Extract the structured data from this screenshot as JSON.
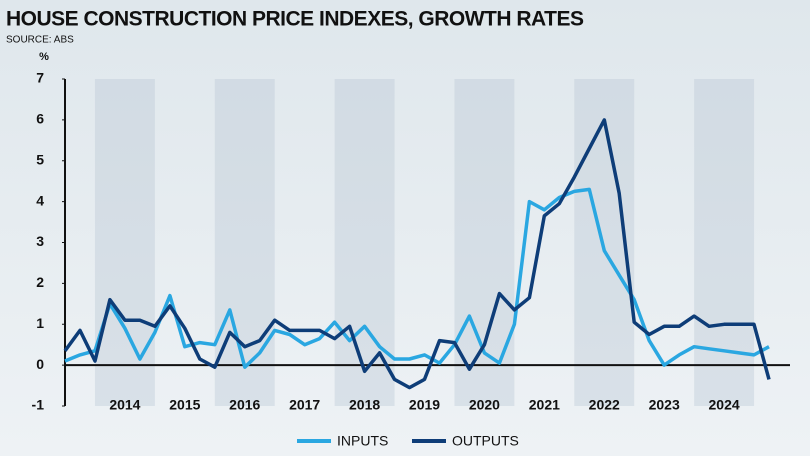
{
  "chart_data": {
    "type": "line",
    "title": "HOUSE CONSTRUCTION PRICE INDEXES, GROWTH RATES",
    "subtitle": "SOURCE: ABS",
    "y_label": "%",
    "x": [
      2013.5,
      2013.75,
      2014,
      2014.25,
      2014.5,
      2014.75,
      2015,
      2015.25,
      2015.5,
      2015.75,
      2016,
      2016.25,
      2016.5,
      2016.75,
      2017,
      2017.25,
      2017.5,
      2017.75,
      2018,
      2018.25,
      2018.5,
      2018.75,
      2019,
      2019.25,
      2019.5,
      2019.75,
      2020,
      2020.25,
      2020.5,
      2020.75,
      2021,
      2021.25,
      2021.5,
      2021.75,
      2022,
      2022.25,
      2022.5,
      2022.75,
      2023,
      2023.25,
      2023.5,
      2023.75,
      2024,
      2024.25,
      2024.5,
      2024.75,
      2025,
      2025.25
    ],
    "series": [
      {
        "name": "INPUTS",
        "color": "#2aa7e1",
        "values": [
          0.1,
          0.25,
          0.35,
          1.5,
          0.9,
          0.15,
          0.8,
          1.7,
          0.45,
          0.55,
          0.5,
          1.35,
          -0.05,
          0.3,
          0.85,
          0.75,
          0.5,
          0.65,
          1.05,
          0.6,
          0.95,
          0.45,
          0.15,
          0.15,
          0.25,
          0.05,
          0.5,
          1.2,
          0.3,
          0.05,
          1.0,
          4.0,
          3.8,
          4.1,
          4.25,
          4.3,
          2.8,
          2.2,
          1.6,
          0.6,
          0.0,
          0.25,
          0.45,
          0.4,
          0.35,
          0.3,
          0.25,
          0.45
        ]
      },
      {
        "name": "OUTPUTS",
        "color": "#0e3d78",
        "values": [
          0.35,
          0.85,
          0.1,
          1.6,
          1.1,
          1.1,
          0.95,
          1.45,
          0.9,
          0.15,
          -0.05,
          0.8,
          0.45,
          0.6,
          1.1,
          0.85,
          0.85,
          0.85,
          0.65,
          0.95,
          -0.15,
          0.3,
          -0.35,
          -0.55,
          -0.35,
          0.6,
          0.55,
          -0.1,
          0.5,
          1.75,
          1.35,
          1.65,
          3.65,
          3.95,
          4.6,
          5.3,
          6.0,
          4.2,
          1.05,
          0.75,
          0.95,
          0.95,
          1.2,
          0.95,
          1.0,
          1.0,
          1.0,
          -0.35
        ]
      }
    ],
    "xlim": [
      2013.5,
      2025.6
    ],
    "xticks": [
      {
        "value": 2014.5,
        "label": "2014"
      },
      {
        "value": 2015.5,
        "label": "2015"
      },
      {
        "value": 2016.5,
        "label": "2016"
      },
      {
        "value": 2017.5,
        "label": "2017"
      },
      {
        "value": 2018.5,
        "label": "2018"
      },
      {
        "value": 2019.5,
        "label": "2019"
      },
      {
        "value": 2020.5,
        "label": "2020"
      },
      {
        "value": 2021.5,
        "label": "2021"
      },
      {
        "value": 2022.5,
        "label": "2022"
      },
      {
        "value": 2023.5,
        "label": "2023"
      },
      {
        "value": 2024.5,
        "label": "2024"
      }
    ],
    "ylim": [
      -1,
      7
    ],
    "yticks": [
      -1,
      0,
      1,
      2,
      3,
      4,
      5,
      6,
      7
    ]
  }
}
